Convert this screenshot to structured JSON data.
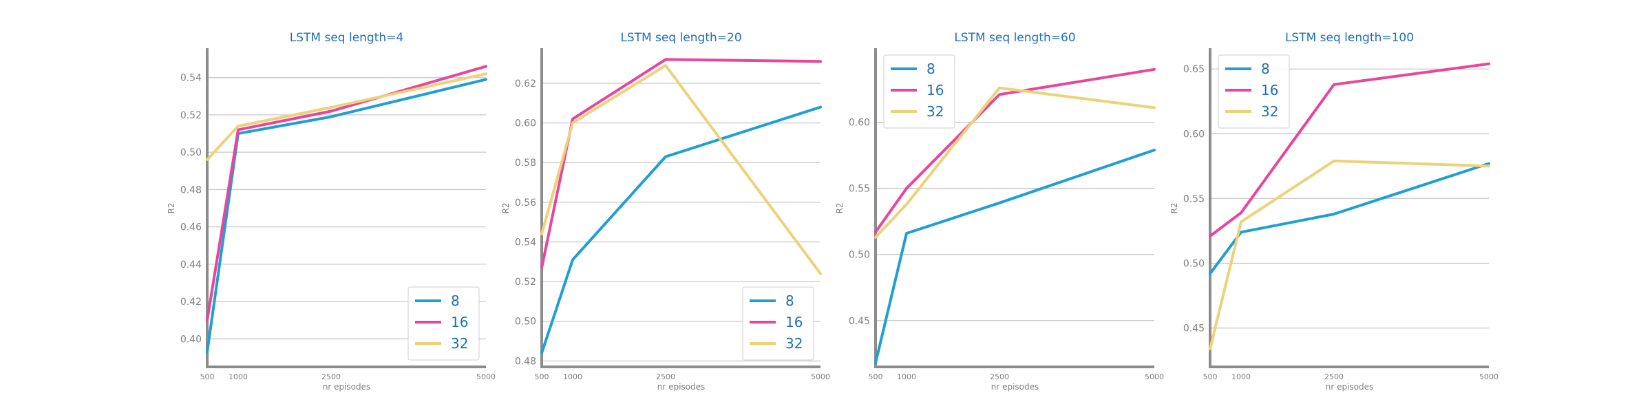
{
  "chart_data": [
    {
      "type": "line",
      "title": "LSTM seq length=4",
      "xlabel": "nr episodes",
      "ylabel": "R2",
      "x": [
        500,
        1000,
        2500,
        5000
      ],
      "xticks": [
        500,
        1000,
        2500,
        5000
      ],
      "xlim": [
        500,
        5000
      ],
      "ylim": [
        0.385,
        0.555
      ],
      "yticks": [
        0.4,
        0.42,
        0.44,
        0.46,
        0.48,
        0.5,
        0.52,
        0.54
      ],
      "grid": "horizontal",
      "legend": "lower-right",
      "series": [
        {
          "name": "8",
          "values": [
            0.393,
            0.51,
            0.519,
            0.539
          ]
        },
        {
          "name": "16",
          "values": [
            0.41,
            0.512,
            0.522,
            0.546
          ]
        },
        {
          "name": "32",
          "values": [
            0.496,
            0.514,
            0.524,
            0.542
          ]
        }
      ]
    },
    {
      "type": "line",
      "title": "LSTM seq length=20",
      "xlabel": "nr episodes",
      "ylabel": "R2",
      "x": [
        500,
        1000,
        2500,
        5000
      ],
      "xticks": [
        500,
        1000,
        2500,
        5000
      ],
      "xlim": [
        500,
        5000
      ],
      "ylim": [
        0.477,
        0.637
      ],
      "yticks": [
        0.48,
        0.5,
        0.52,
        0.54,
        0.56,
        0.58,
        0.6,
        0.62
      ],
      "grid": "horizontal",
      "legend": "lower-right",
      "series": [
        {
          "name": "8",
          "values": [
            0.484,
            0.531,
            0.583,
            0.608
          ]
        },
        {
          "name": "16",
          "values": [
            0.527,
            0.602,
            0.632,
            0.631
          ]
        },
        {
          "name": "32",
          "values": [
            0.544,
            0.6,
            0.629,
            0.524
          ]
        }
      ]
    },
    {
      "type": "line",
      "title": "LSTM seq length=60",
      "xlabel": "nr episodes",
      "ylabel": "R2",
      "x": [
        500,
        1000,
        2500,
        5000
      ],
      "xticks": [
        500,
        1000,
        2500,
        5000
      ],
      "xlim": [
        500,
        5000
      ],
      "ylim": [
        0.415,
        0.655
      ],
      "yticks": [
        0.45,
        0.5,
        0.55,
        0.6
      ],
      "grid": "horizontal",
      "legend": "upper-left",
      "series": [
        {
          "name": "8",
          "values": [
            0.418,
            0.516,
            0.539,
            0.579
          ]
        },
        {
          "name": "16",
          "values": [
            0.517,
            0.55,
            0.621,
            0.64
          ]
        },
        {
          "name": "32",
          "values": [
            0.513,
            0.538,
            0.626,
            0.611
          ]
        }
      ]
    },
    {
      "type": "line",
      "title": "LSTM seq length=100",
      "xlabel": "nr episodes",
      "ylabel": "R2",
      "x": [
        500,
        1000,
        2500,
        5000
      ],
      "xticks": [
        500,
        1000,
        2500,
        5000
      ],
      "xlim": [
        500,
        5000
      ],
      "ylim": [
        0.42,
        0.665
      ],
      "yticks": [
        0.45,
        0.5,
        0.55,
        0.6,
        0.65
      ],
      "grid": "horizontal",
      "legend": "upper-left",
      "series": [
        {
          "name": "8",
          "values": [
            0.492,
            0.524,
            0.538,
            0.577
          ]
        },
        {
          "name": "16",
          "values": [
            0.521,
            0.539,
            0.638,
            0.654
          ]
        },
        {
          "name": "32",
          "values": [
            0.434,
            0.532,
            0.579,
            0.575
          ]
        }
      ]
    }
  ],
  "colors": {
    "series": [
      "#1f9fd4",
      "#e8469a",
      "#ecd279"
    ],
    "axis": "#8c8c8c",
    "grid": "#c8c8c8",
    "title": "#1f6fb5",
    "tick": "#7f7f7f"
  }
}
